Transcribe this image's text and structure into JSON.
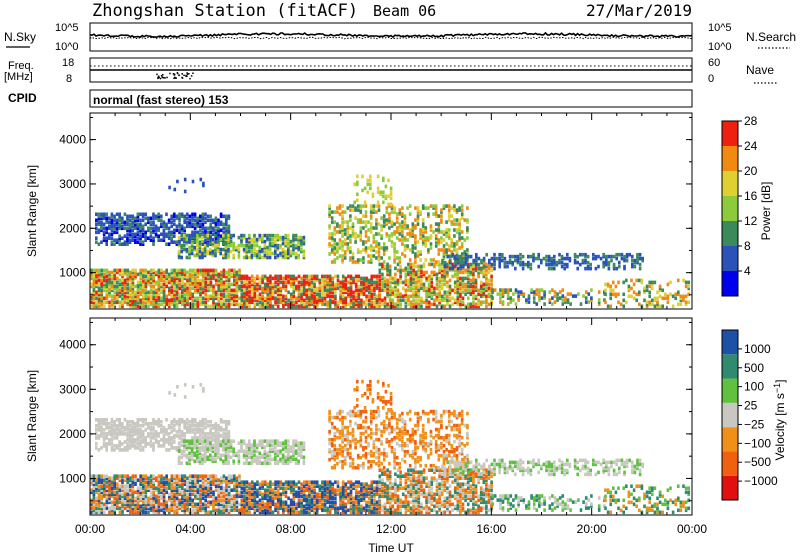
{
  "header": {
    "station": "Zhongshan Station (fitACF)",
    "beam": "Beam 06",
    "date": "27/Mar/2019"
  },
  "strip_noise": {
    "left_label": "N.Sky",
    "right_label": "N.Search",
    "left_ticks": [
      "10^5",
      "10^0"
    ],
    "right_ticks": [
      "10^5",
      "10^0"
    ]
  },
  "strip_freq": {
    "left_label_line1": "Freq.",
    "left_label_line2": "[MHz]",
    "left_ticks": [
      "18",
      "8"
    ],
    "right_label": "Nave",
    "right_ticks": [
      "60",
      "0"
    ]
  },
  "cpid": {
    "label": "CPID",
    "text": "normal (fast stereo) 153"
  },
  "colors": {
    "power": [
      "#0000ee",
      "#2a52b8",
      "#3a8a5a",
      "#8ccc3c",
      "#ddd030",
      "#f08a10",
      "#ee2010"
    ],
    "velocity": [
      "#e01010",
      "#f06010",
      "#f09018",
      "#c8c8c0",
      "#60c040",
      "#2f8a70",
      "#1f50a8"
    ]
  },
  "chart_data": [
    {
      "type": "heatmap",
      "title": "",
      "ylabel": "Slant Range [km]",
      "ylim": [
        180,
        4600
      ],
      "yticks": [
        "1000",
        "2000",
        "3000",
        "4000"
      ],
      "xlim": [
        "00:00",
        "24:00"
      ],
      "colorbar": {
        "label": "Power [dB]",
        "ticks": [
          "4",
          "8",
          "12",
          "16",
          "20",
          "24",
          "28"
        ],
        "range": [
          0,
          30
        ]
      }
    },
    {
      "type": "heatmap",
      "title": "",
      "xlabel": "Time UT",
      "ylabel": "Slant Range [km]",
      "ylim": [
        180,
        4600
      ],
      "yticks": [
        "1000",
        "2000",
        "3000",
        "4000"
      ],
      "xticks": [
        "00:00",
        "04:00",
        "08:00",
        "12:00",
        "16:00",
        "20:00",
        "00:00"
      ],
      "xlim": [
        "00:00",
        "24:00"
      ],
      "colorbar": {
        "label": "Velocity [m s^-1]",
        "ticks": [
          "1000",
          "500",
          "100",
          "25",
          "−25",
          "−100",
          "−500",
          "−1000"
        ]
      }
    }
  ]
}
